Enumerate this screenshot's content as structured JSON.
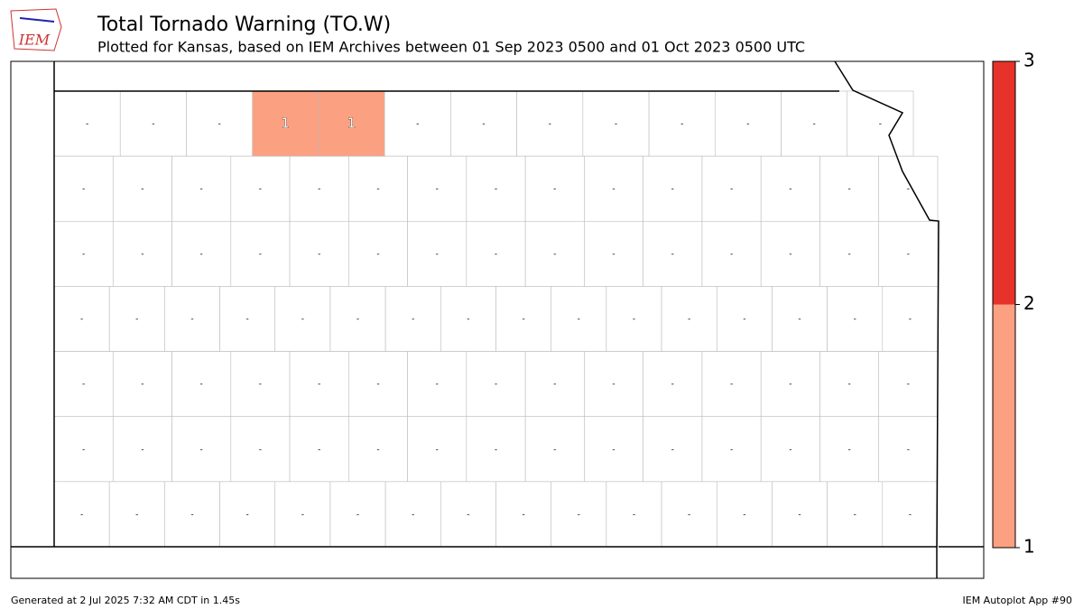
{
  "header": {
    "logo_text": "IEM",
    "title": "Total Tornado Warning (TO.W)",
    "subtitle": "Plotted for Kansas, based on IEM Archives  between 01 Sep 2023 0500 and 01 Oct 2023 0500 UTC"
  },
  "map_data": {
    "rows": [
      [
        "-",
        "-",
        "-",
        1,
        1,
        "-",
        "-",
        "-",
        "-",
        "-",
        "-",
        "-",
        "-"
      ],
      [
        "-",
        "-",
        "-",
        "-",
        "-",
        "-",
        "-",
        "-",
        "-",
        "-",
        "-",
        "-",
        "-",
        "-",
        "-"
      ],
      [
        "-",
        "-",
        "-",
        "-",
        "-",
        "-",
        "-",
        "-",
        "-",
        "-",
        "-",
        "-",
        "-",
        "-",
        "-"
      ],
      [
        "-",
        "-",
        "-",
        "-",
        "-",
        "-",
        "-",
        "-",
        "-",
        "-",
        "-",
        "-",
        "-",
        "-",
        "-",
        "-"
      ],
      [
        "-",
        "-",
        "-",
        "-",
        "-",
        "-",
        "-",
        "-",
        "-",
        "-",
        "-",
        "-",
        "-",
        "-",
        "-"
      ],
      [
        "-",
        "-",
        "-",
        "-",
        "-",
        "-",
        "-",
        "-",
        "-",
        "-",
        "-",
        "-",
        "-",
        "-",
        "-"
      ],
      [
        "-",
        "-",
        "-",
        "-",
        "-",
        "-",
        "-",
        "-",
        "-",
        "-",
        "-",
        "-",
        "-",
        "-",
        "-",
        "-"
      ]
    ]
  },
  "colorbar": {
    "lim": [
      1,
      3
    ],
    "ticks": [
      1,
      2,
      3
    ],
    "colors": [
      "#fca082",
      "#e6322a"
    ]
  },
  "footer": {
    "left": "Generated at 2 Jul 2025 7:32 AM CDT in 1.45s",
    "right": "IEM Autoplot App #90"
  }
}
